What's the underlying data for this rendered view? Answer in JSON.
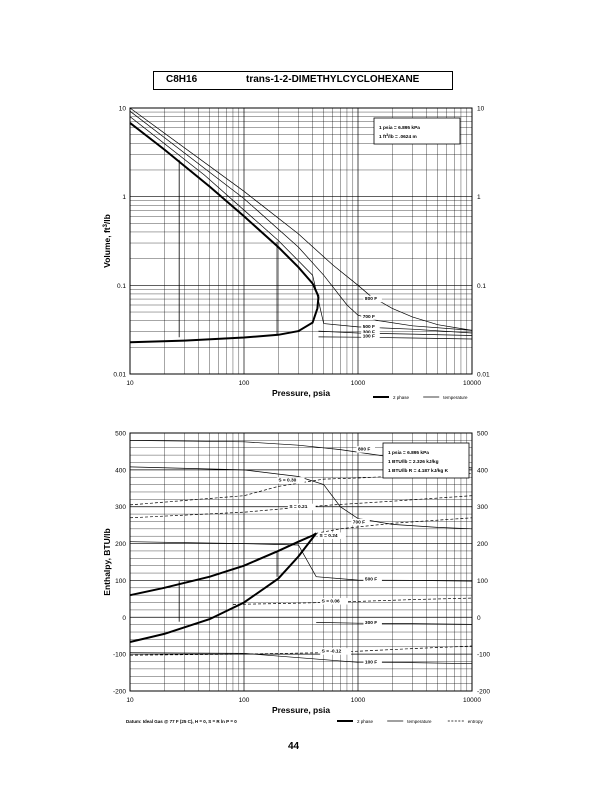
{
  "header": {
    "formula": "C8H16",
    "compound": "trans-1-2-DIMETHYLCYCLOHEXANE"
  },
  "page_number": "44",
  "chart_data": [
    {
      "type": "line",
      "xscale": "log",
      "yscale": "log",
      "xlim": [
        10,
        10000
      ],
      "ylim": [
        0.01,
        10
      ],
      "xlabel": "Pressure,  psia",
      "ylabel": "Volume,  ft^3/lb",
      "x_ticks": [
        "10",
        "100",
        "1000",
        "10000"
      ],
      "y_ticks": [
        "0.01",
        "0.1",
        "1",
        "10"
      ],
      "conversion_box": [
        "1 psia  =  6.895 kPa",
        "1 ft^3/lb  =  .0624 m^3/kg"
      ],
      "legend": [
        {
          "label": "2 phase",
          "style": "thick"
        },
        {
          "label": "temperature",
          "style": "thin"
        }
      ],
      "grid": true,
      "dome": {
        "liquid": [
          [
            10,
            0.0228
          ],
          [
            30,
            0.0238
          ],
          [
            100,
            0.0258
          ],
          [
            200,
            0.0277
          ],
          [
            300,
            0.0305
          ],
          [
            400,
            0.038
          ],
          [
            440,
            0.055
          ],
          [
            450,
            0.075
          ]
        ],
        "vapor": [
          [
            10,
            6.8
          ],
          [
            20,
            3.4
          ],
          [
            50,
            1.3
          ],
          [
            100,
            0.6
          ],
          [
            200,
            0.27
          ],
          [
            300,
            0.16
          ],
          [
            400,
            0.105
          ],
          [
            450,
            0.075
          ]
        ]
      },
      "two_phase_verticals": [
        {
          "x": 27,
          "y": [
            0.026,
            2.6
          ]
        },
        {
          "x": 195,
          "y": [
            0.028,
            0.31
          ]
        }
      ],
      "series": [
        {
          "name": "800 F",
          "label_at": [
            1150,
            0.068
          ],
          "points": [
            [
              10,
              10
            ],
            [
              100,
              1.15
            ],
            [
              300,
              0.38
            ],
            [
              600,
              0.17
            ],
            [
              1000,
              0.1
            ],
            [
              1300,
              0.075
            ],
            [
              2000,
              0.055
            ],
            [
              3000,
              0.044
            ],
            [
              5000,
              0.036
            ],
            [
              10000,
              0.031
            ]
          ]
        },
        {
          "name": "700 F",
          "label_at": [
            1100,
            0.043
          ],
          "points": [
            [
              10,
              9.2
            ],
            [
              100,
              0.95
            ],
            [
              300,
              0.27
            ],
            [
              500,
              0.13
            ],
            [
              800,
              0.06
            ],
            [
              1000,
              0.046
            ],
            [
              1500,
              0.04
            ],
            [
              3000,
              0.035
            ],
            [
              10000,
              0.031
            ]
          ]
        },
        {
          "name": "500 F",
          "label_at": [
            1100,
            0.033
          ],
          "points": [
            [
              10,
              8.0
            ],
            [
              45,
              1.75
            ],
            [
              200,
              0.32
            ],
            [
              400,
              0.13
            ],
            [
              500,
              0.037
            ],
            [
              1000,
              0.034
            ],
            [
              3000,
              0.032
            ],
            [
              10000,
              0.029
            ]
          ]
        },
        {
          "name": "300 F",
          "label_at": [
            1100,
            0.0285
          ],
          "points": [
            [
              450,
              0.0305
            ],
            [
              1000,
              0.029
            ],
            [
              3000,
              0.0282
            ],
            [
              10000,
              0.0272
            ]
          ]
        },
        {
          "name": "100 F",
          "label_at": [
            1100,
            0.0258
          ],
          "points": [
            [
              450,
              0.0262
            ],
            [
              1000,
              0.026
            ],
            [
              3000,
              0.0255
            ],
            [
              10000,
              0.0248
            ]
          ]
        }
      ]
    },
    {
      "type": "line",
      "xscale": "log",
      "xlim": [
        10,
        10000
      ],
      "ylim": [
        -200,
        500
      ],
      "xlabel": "Pressure,  psia",
      "ylabel": "Enthalpy,  BTU/lb",
      "x_ticks": [
        "10",
        "100",
        "1000",
        "10000"
      ],
      "y_ticks": [
        "500",
        "400",
        "300",
        "200",
        "100",
        "0",
        "-100",
        "-200"
      ],
      "conversion_box": [
        "1 psia  =  6.895 kPa",
        "1 BTU/lb  =  2.326 kJ/kg",
        "1 BTU/lb R  =  4.187 kJ/kg K"
      ],
      "datum": "Datum: Ideal Gas @ 77 F (25 C),  H = 0,  S = R ln P = 0",
      "legend": [
        {
          "label": "2 phase",
          "style": "thick"
        },
        {
          "label": "temperature",
          "style": "thin"
        },
        {
          "label": "entropy",
          "style": "dashed"
        }
      ],
      "grid": true,
      "dome": {
        "liquid": [
          [
            10,
            -67
          ],
          [
            20,
            -45
          ],
          [
            50,
            -5
          ],
          [
            100,
            40
          ],
          [
            200,
            105
          ],
          [
            300,
            165
          ],
          [
            400,
            215
          ],
          [
            430,
            228
          ]
        ],
        "vapor": [
          [
            10,
            60
          ],
          [
            20,
            80
          ],
          [
            50,
            110
          ],
          [
            100,
            140
          ],
          [
            200,
            180
          ],
          [
            300,
            205
          ],
          [
            400,
            222
          ],
          [
            430,
            228
          ]
        ]
      },
      "two_phase_verticals": [
        {
          "x": 27,
          "y": [
            -12,
            98
          ]
        },
        {
          "x": 195,
          "y": [
            110,
            178
          ]
        }
      ],
      "temperature_series": [
        {
          "name": "800 F",
          "label_at": [
            1000,
            452
          ],
          "points": [
            [
              10,
              480
            ],
            [
              100,
              476
            ],
            [
              300,
              467
            ],
            [
              700,
              455
            ],
            [
              1500,
              440
            ],
            [
              3000,
              425
            ],
            [
              10000,
              405
            ]
          ]
        },
        {
          "name": "700 F",
          "label_at": [
            900,
            255
          ],
          "points": [
            [
              10,
              408
            ],
            [
              100,
              400
            ],
            [
              300,
              382
            ],
            [
              500,
              360
            ],
            [
              700,
              300
            ],
            [
              1000,
              268
            ],
            [
              2000,
              252
            ],
            [
              5000,
              244
            ],
            [
              10000,
              240
            ]
          ]
        },
        {
          "name": "500 F",
          "label_at": [
            1150,
            100
          ],
          "points": [
            [
              10,
              205
            ],
            [
              100,
              200
            ],
            [
              300,
              196
            ],
            [
              430,
              110
            ],
            [
              1000,
              101
            ],
            [
              3000,
              100
            ],
            [
              10000,
              98
            ]
          ]
        },
        {
          "name": "300 F",
          "label_at": [
            1150,
            -18
          ],
          "points": [
            [
              430,
              -14
            ],
            [
              1000,
              -16
            ],
            [
              3000,
              -17
            ],
            [
              10000,
              -19
            ]
          ]
        },
        {
          "name": "100 F",
          "label_at": [
            1150,
            -125
          ],
          "points": [
            [
              10,
              -96
            ],
            [
              100,
              -98
            ],
            [
              1000,
              -122
            ],
            [
              3000,
              -123
            ],
            [
              10000,
              -126
            ]
          ]
        }
      ],
      "entropy_series": [
        {
          "name": "S = 0.30",
          "label_at": [
            200,
            368
          ],
          "points": [
            [
              10,
              305
            ],
            [
              100,
              330
            ],
            [
              200,
              355
            ],
            [
              500,
              375
            ],
            [
              1000,
              378
            ],
            [
              3000,
              385
            ],
            [
              10000,
              390
            ]
          ]
        },
        {
          "name": "S = 0.21",
          "label_at": [
            250,
            296
          ],
          "points": [
            [
              10,
              270
            ],
            [
              100,
              285
            ],
            [
              250,
              296
            ],
            [
              600,
              305
            ],
            [
              2000,
              315
            ],
            [
              10000,
              330
            ]
          ]
        },
        {
          "name": "S = 0.24",
          "label_at": [
            460,
            218
          ],
          "points": [
            [
              430,
              228
            ],
            [
              700,
              240
            ],
            [
              2000,
              255
            ],
            [
              10000,
              270
            ]
          ]
        },
        {
          "name": "S = 0.06",
          "label_at": [
            480,
            40
          ],
          "points": [
            [
              80,
              35
            ],
            [
              200,
              37
            ],
            [
              500,
              40
            ],
            [
              1000,
              43
            ],
            [
              3000,
              48
            ],
            [
              10000,
              52
            ]
          ]
        },
        {
          "name": "S = -0.12",
          "label_at": [
            480,
            -96
          ],
          "points": [
            [
              10,
              -103
            ],
            [
              100,
              -100
            ],
            [
              500,
              -96
            ],
            [
              1000,
              -92
            ],
            [
              3000,
              -85
            ],
            [
              10000,
              -78
            ]
          ]
        }
      ]
    }
  ]
}
